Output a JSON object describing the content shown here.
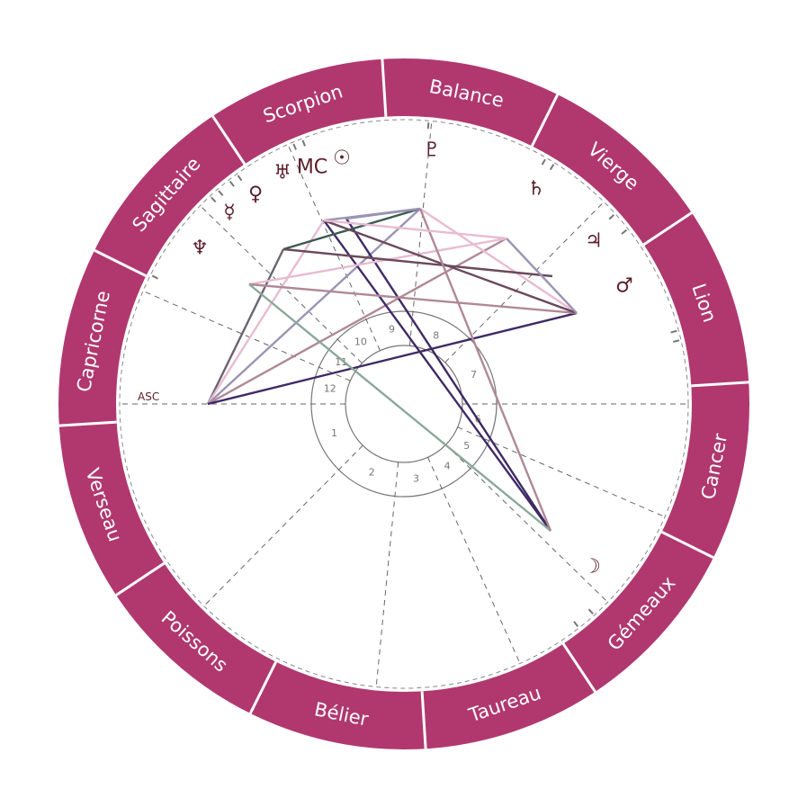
{
  "colors": {
    "ring": "#b0386f",
    "ring_divider": "#ffffff",
    "glyph": "#5a1e2a",
    "cusp": "#666666"
  },
  "signs": [
    "Scorpion",
    "Balance",
    "Vierge",
    "Lion",
    "Cancer",
    "Gémeaux",
    "Taureau",
    "Bélier",
    "Poissons",
    "Verseau",
    "Capricorne",
    "Sagittaire"
  ],
  "houses": [
    "1",
    "2",
    "3",
    "4",
    "5",
    "6",
    "7",
    "8",
    "9",
    "10",
    "11",
    "12"
  ],
  "asc_label": "ASC",
  "planets": [
    {
      "name": "pluto",
      "glyph": "♇"
    },
    {
      "name": "saturn",
      "glyph": "♄"
    },
    {
      "name": "jupiter",
      "glyph": "♃"
    },
    {
      "name": "mars",
      "glyph": "♂"
    },
    {
      "name": "moon",
      "glyph": "☽"
    },
    {
      "name": "sun",
      "glyph": "☉"
    },
    {
      "name": "mc",
      "glyph": "MC"
    },
    {
      "name": "uranus",
      "glyph": "♅"
    },
    {
      "name": "mercury",
      "glyph": "☿"
    },
    {
      "name": "venus",
      "glyph": "♀"
    },
    {
      "name": "neptune",
      "glyph": "♆"
    }
  ],
  "aspect_colors": [
    "#6b6470",
    "#e8bcd0",
    "#9a94b4",
    "#b08898",
    "#3f2a66",
    "#3d5a50",
    "#8aa89a",
    "#6a4a5a"
  ]
}
